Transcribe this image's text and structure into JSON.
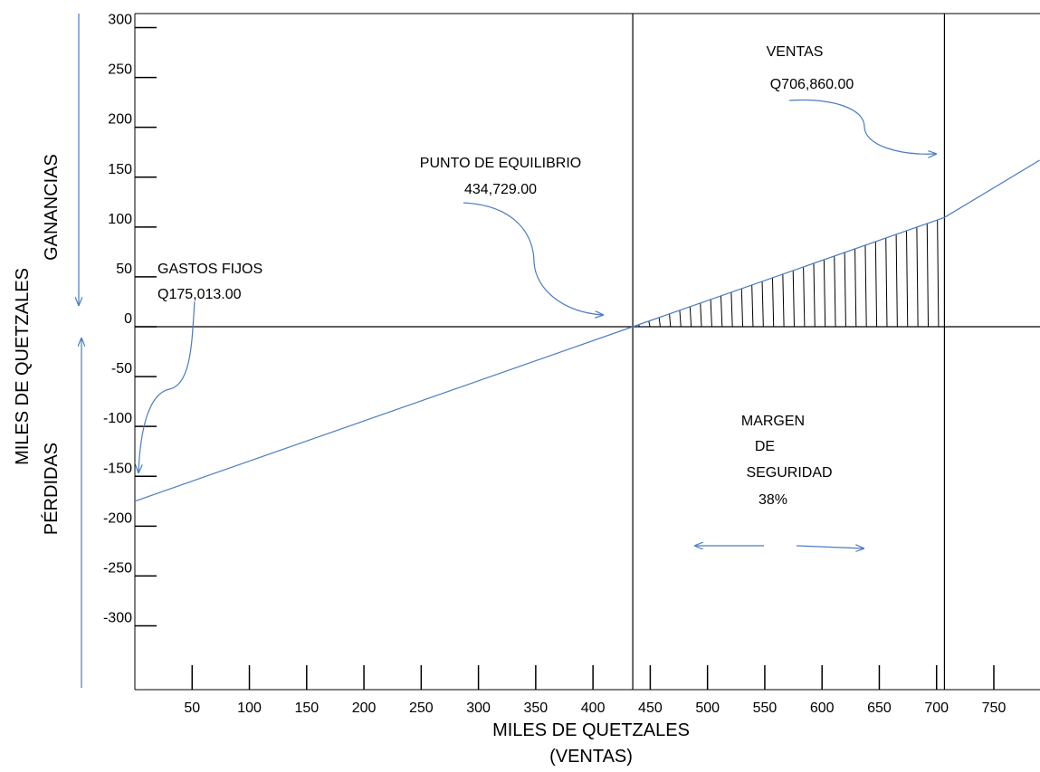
{
  "chart_data": {
    "type": "line",
    "title": "",
    "xlabel": "MILES DE QUETZALES",
    "xlabel_sub": "(VENTAS)",
    "ylabel": "MILES DE QUETZALES",
    "ylabel_up": "GANANCIAS",
    "ylabel_down": "PÉRDIDAS",
    "x_ticks": [
      50,
      100,
      150,
      200,
      250,
      300,
      350,
      400,
      450,
      500,
      550,
      600,
      650,
      700,
      750
    ],
    "x_tick_labels": [
      "50",
      "100",
      "150",
      "200",
      "250",
      "300",
      "350",
      "400",
      "450",
      "500",
      "550",
      "600",
      "650",
      "700",
      "750"
    ],
    "xlim": [
      0,
      790
    ],
    "y_ticks": [
      300,
      250,
      200,
      150,
      100,
      50,
      0,
      -50,
      -100,
      -150,
      -200,
      -250,
      -300
    ],
    "y_tick_labels": [
      "300",
      "250",
      "200",
      "150",
      "100",
      "50",
      "0",
      "-50",
      "-100",
      "-150",
      "-200",
      "-250",
      "-300"
    ],
    "ylim": [
      -350,
      300
    ],
    "series": [
      {
        "x": [
          0,
          434.729,
          706.86,
          790
        ],
        "y": [
          -175.013,
          0,
          109.6,
          167
        ]
      }
    ],
    "break_even_x": 434.729,
    "sales_x": 706.86,
    "fixed_costs": 175.013,
    "shaded_region": "margin of safety between break-even and sales",
    "grid": false,
    "colors": {
      "line": "#4a7cbf",
      "arrow": "#4a7cbf",
      "axis": "#000000"
    },
    "annotations": {
      "fixed_costs": {
        "line1": "GASTOS FIJOS",
        "line2": "Q175,013.00"
      },
      "break_even": {
        "line1": "PUNTO DE EQUILIBRIO",
        "line2": "434,729.00"
      },
      "sales": {
        "line1": "VENTAS",
        "line2": "Q706,860.00"
      },
      "margin": {
        "line1": "MARGEN",
        "line2": "DE",
        "line3": "SEGURIDAD",
        "line4": "38%"
      }
    }
  }
}
